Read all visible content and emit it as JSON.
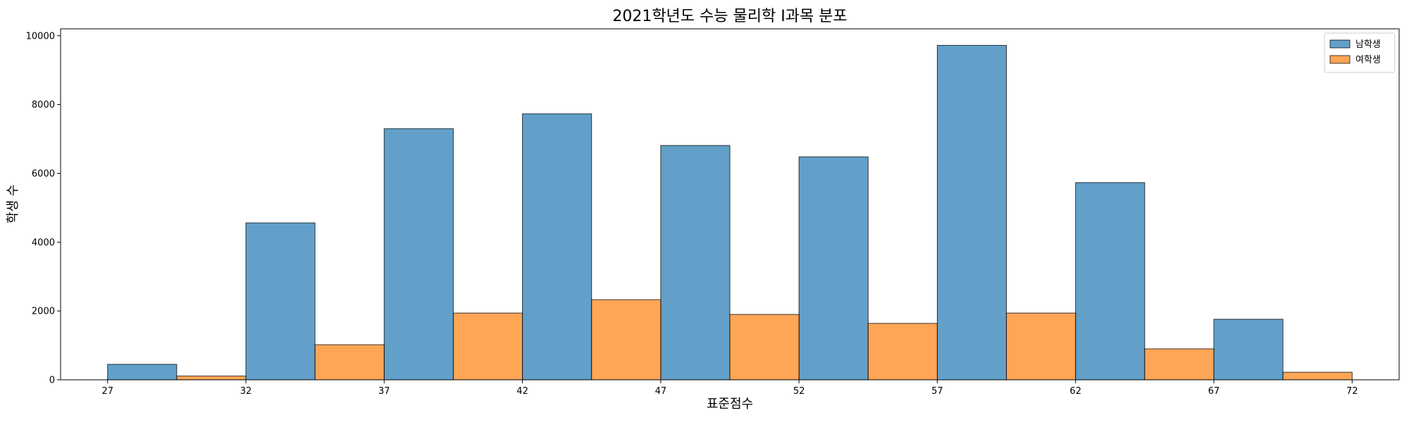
{
  "chart_data": {
    "type": "bar",
    "title": "2021학년도 수능 물리학 I과목 분포",
    "xlabel": "표준점수",
    "ylabel": "학생 수",
    "x_ticks": [
      27,
      32,
      37,
      42,
      47,
      52,
      57,
      62,
      67,
      72
    ],
    "xlim": [
      25.3,
      73.7
    ],
    "y_ticks": [
      0,
      2000,
      4000,
      6000,
      8000,
      10000
    ],
    "ylim": [
      0,
      10200
    ],
    "bin_starts": [
      27,
      32,
      37,
      42,
      47,
      52,
      57,
      62,
      67
    ],
    "bin_width": 5,
    "grid": false,
    "legend_position": "top-right",
    "series": [
      {
        "name": "남학생",
        "color": "#1f77b4",
        "values": [
          450,
          4560,
          7300,
          7730,
          6810,
          6480,
          9720,
          5730,
          1760
        ]
      },
      {
        "name": "여학생",
        "color": "#ff7f0e",
        "values": [
          110,
          1020,
          1940,
          2330,
          1900,
          1640,
          1940,
          900,
          220
        ]
      }
    ]
  }
}
